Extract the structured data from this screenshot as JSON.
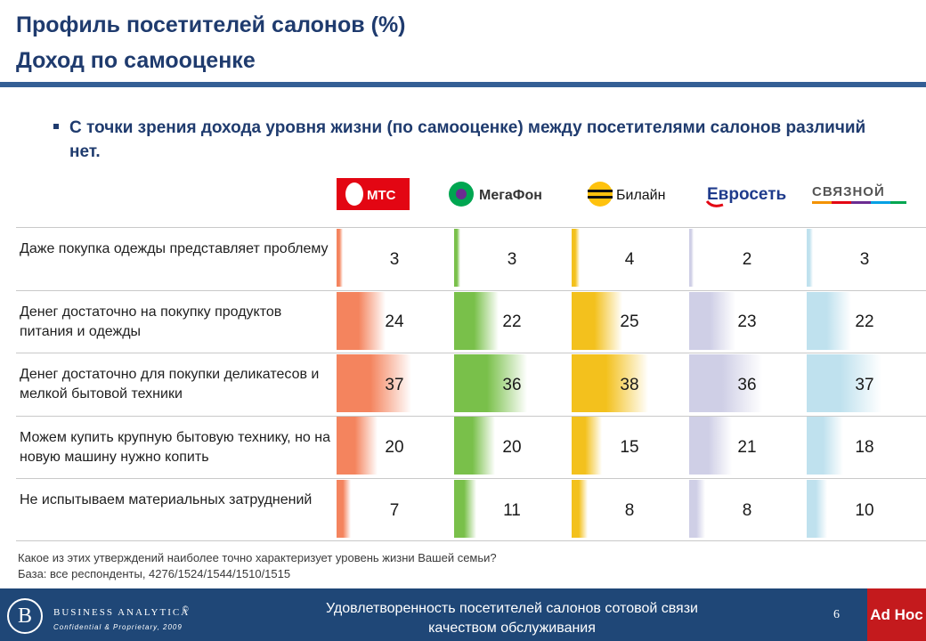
{
  "header": {
    "title_line1": "Профиль посетителей салонов (%)",
    "title_line2": "Доход по самооценке"
  },
  "bullet": "С точки зрения дохода уровня жизни (по самооценке) между посетителями салонов различий нет.",
  "brands": [
    {
      "name": "МТС",
      "color": "#e30613",
      "icon": "mts-egg-logo"
    },
    {
      "name": "МегаФон",
      "color": "#00a651",
      "icon": "megafon-logo"
    },
    {
      "name": "Билайн",
      "color": "#ffc20e",
      "icon": "beeline-stripes-logo"
    },
    {
      "name": "Евросеть",
      "color": "#1f3b8c",
      "icon": "euroset-logo"
    },
    {
      "name": "СВЯЗНОЙ",
      "color": "#4a4a4a",
      "icon": "svyaznoy-logo"
    }
  ],
  "chart_data": {
    "type": "bar",
    "orientation": "horizontal",
    "categories": [
      "Даже покупка одежды представляет проблему",
      "Денег достаточно на покупку продуктов питания и одежды",
      "Денег достаточно для покупки деликатесов и мелкой бытовой техники",
      "Можем купить крупную бытовую технику, но на новую машину нужно копить",
      "Не испытываем материальных затруднений"
    ],
    "series": [
      {
        "name": "МТС",
        "values": [
          3,
          24,
          37,
          20,
          7
        ],
        "color": "#f4845e"
      },
      {
        "name": "МегаФон",
        "values": [
          3,
          22,
          36,
          20,
          11
        ],
        "color": "#79c04a"
      },
      {
        "name": "Билайн",
        "values": [
          4,
          25,
          38,
          15,
          8
        ],
        "color": "#f3c11d"
      },
      {
        "name": "Евросеть",
        "values": [
          2,
          23,
          36,
          21,
          8
        ],
        "color": "#cfcfe6"
      },
      {
        "name": "СВЯЗНОЙ",
        "values": [
          3,
          22,
          37,
          18,
          10
        ],
        "color": "#bfe1ee"
      }
    ],
    "xlim": [
      0,
      40
    ],
    "title": "",
    "xlabel": "",
    "ylabel": ""
  },
  "question": "Какое из этих утверждений наиболее точно характеризует уровень жизни Вашей семьи?",
  "base": "База: все респонденты, 4276/1524/1544/1510/1515",
  "footer": {
    "company": "BUSINESS ANALYTICA",
    "company_initial": "B",
    "registered": "©",
    "confidential": "Confidential & Proprietary, 2009",
    "line1": "Удовлетворенность посетителей салонов сотовой связи",
    "line2": "качеством обслуживания",
    "page": "6",
    "tag": "Ad Hoc"
  }
}
